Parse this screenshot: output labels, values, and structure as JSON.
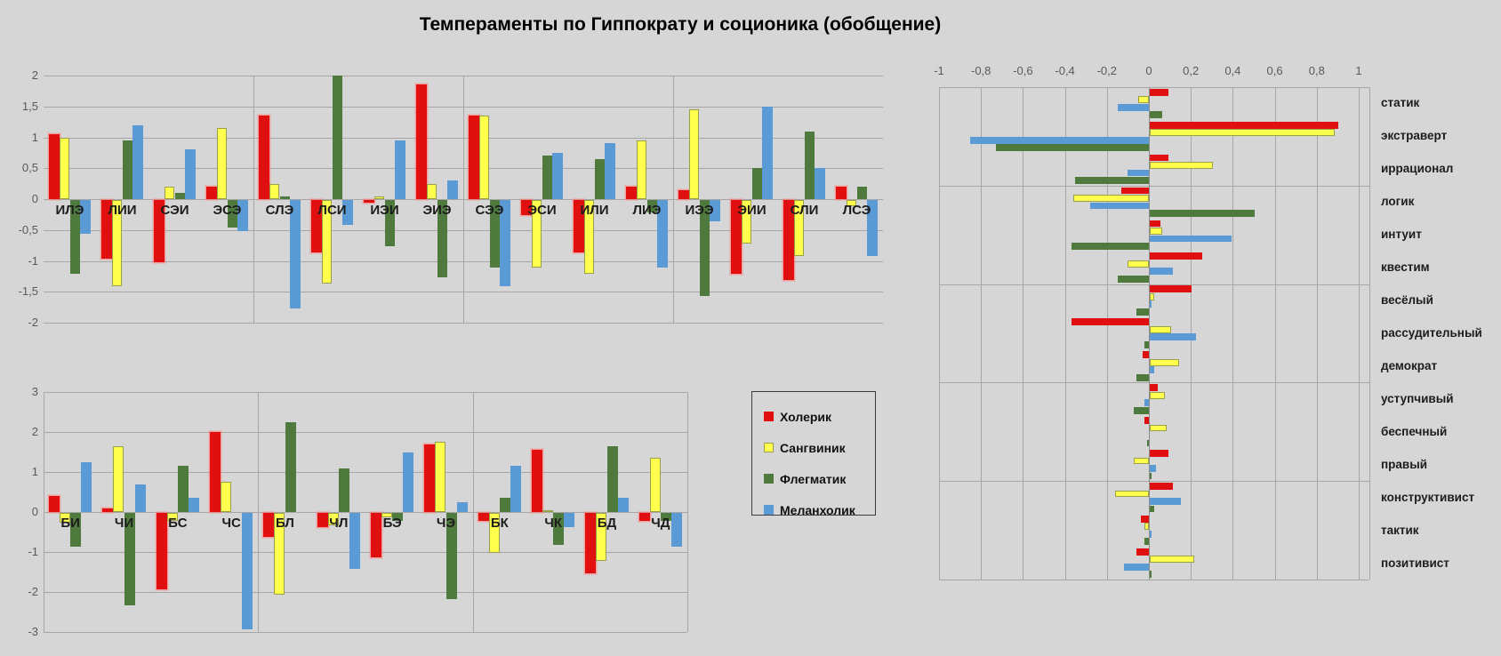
{
  "title": "Темпераменты по Гиппократу и соционика (обобщение)",
  "legend": {
    "items": [
      {
        "label": "Холерик",
        "color": "#e01010",
        "border": ""
      },
      {
        "label": "Сангвиник",
        "color": "#ffff4d",
        "border": "#9aa048"
      },
      {
        "label": "Флегматик",
        "color": "#4f7a3d",
        "border": ""
      },
      {
        "label": "Меланхолик",
        "color": "#5b9bd5",
        "border": ""
      }
    ]
  },
  "chart_data": [
    {
      "type": "bar",
      "orientation": "vertical",
      "title": "",
      "categories": [
        "ИЛЭ",
        "ЛИИ",
        "СЭИ",
        "ЭСЭ",
        "СЛЭ",
        "ЛСИ",
        "ИЭИ",
        "ЭИЭ",
        "СЭЭ",
        "ЭСИ",
        "ИЛИ",
        "ЛИЭ",
        "ИЭЭ",
        "ЭИИ",
        "СЛИ",
        "ЛСЭ"
      ],
      "series": [
        {
          "name": "Холерик",
          "color": "#e01010",
          "values": [
            1.05,
            -0.95,
            -1.0,
            0.2,
            1.35,
            -0.85,
            -0.05,
            1.85,
            1.35,
            -0.25,
            -0.85,
            0.2,
            0.15,
            -1.2,
            -1.3,
            0.2
          ]
        },
        {
          "name": "Сангвиник",
          "color": "#ffff4d",
          "border": "#9aa048",
          "values": [
            1.0,
            -1.4,
            0.2,
            1.15,
            0.25,
            -1.35,
            0.05,
            0.25,
            1.35,
            -1.1,
            -1.2,
            0.95,
            1.45,
            -0.7,
            -0.9,
            -0.1
          ]
        },
        {
          "name": "Флегматик",
          "color": "#4f7a3d",
          "values": [
            -1.2,
            0.95,
            0.1,
            -0.45,
            0.05,
            2.0,
            -0.75,
            -1.25,
            -1.1,
            0.7,
            0.65,
            -0.2,
            -1.55,
            0.5,
            1.1,
            0.2
          ]
        },
        {
          "name": "Меланхолик",
          "color": "#5b9bd5",
          "values": [
            -0.55,
            1.2,
            0.8,
            -0.5,
            -1.75,
            -0.4,
            0.95,
            0.3,
            -1.4,
            0.75,
            0.9,
            -1.1,
            -0.35,
            1.5,
            0.5,
            -0.9
          ]
        }
      ],
      "ylim": [
        -2,
        2
      ],
      "ytick_step": 0.5,
      "yticks": [
        "2",
        "1,5",
        "1",
        "0,5",
        "0",
        "-0,5",
        "-1",
        "-1,5",
        "-2"
      ],
      "grid": true,
      "group_separator_every": 4
    },
    {
      "type": "bar",
      "orientation": "vertical",
      "title": "",
      "categories": [
        "БИ",
        "ЧИ",
        "БС",
        "ЧС",
        "БЛ",
        "ЧЛ",
        "БЭ",
        "ЧЭ",
        "БК",
        "ЧК",
        "БД",
        "ЧД"
      ],
      "series": [
        {
          "name": "Холерик",
          "color": "#e01010",
          "values": [
            0.4,
            0.1,
            -1.9,
            2.0,
            -0.6,
            -0.35,
            -1.1,
            1.7,
            -0.2,
            1.55,
            -1.5,
            -0.2
          ]
        },
        {
          "name": "Сангвиник",
          "color": "#ffff4d",
          "border": "#9aa048",
          "values": [
            -0.25,
            1.65,
            -0.2,
            0.75,
            -2.05,
            -0.3,
            -0.1,
            1.75,
            -1.0,
            0.05,
            -1.2,
            1.35
          ]
        },
        {
          "name": "Флегматик",
          "color": "#4f7a3d",
          "values": [
            -0.85,
            -2.3,
            1.15,
            0.0,
            2.25,
            1.1,
            -0.2,
            -2.15,
            0.35,
            -0.8,
            1.65,
            -0.2
          ]
        },
        {
          "name": "Меланхолик",
          "color": "#5b9bd5",
          "values": [
            1.25,
            0.7,
            0.35,
            -2.9,
            0.0,
            -1.4,
            1.5,
            0.25,
            1.15,
            -0.35,
            0.35,
            -0.85
          ]
        }
      ],
      "ylim": [
        -3,
        3
      ],
      "ytick_step": 1,
      "yticks": [
        "3",
        "2",
        "1",
        "0",
        "-1",
        "-2",
        "-3"
      ],
      "grid": true,
      "group_separator_every": 4
    },
    {
      "type": "bar",
      "orientation": "horizontal",
      "title": "",
      "categories": [
        "статик",
        "экстраверт",
        "иррационал",
        "логик",
        "интуит",
        "квестим",
        "весёлый",
        "рассудительный",
        "демократ",
        "уступчивый",
        "беспечный",
        "правый",
        "конструктивист",
        "тактик",
        "позитивист"
      ],
      "series": [
        {
          "name": "Холерик",
          "color": "#e01010",
          "values": [
            0.09,
            0.9,
            0.09,
            -0.13,
            0.05,
            0.25,
            0.2,
            -0.37,
            -0.03,
            0.04,
            -0.02,
            0.09,
            0.11,
            -0.04,
            -0.06
          ]
        },
        {
          "name": "Сангвиник",
          "color": "#ffff4d",
          "border": "#9aa048",
          "values": [
            -0.05,
            0.88,
            0.3,
            -0.36,
            0.06,
            -0.1,
            0.02,
            0.1,
            0.14,
            0.07,
            0.08,
            -0.07,
            -0.16,
            -0.02,
            0.21
          ]
        },
        {
          "name": "Меланхолик",
          "color": "#5b9bd5",
          "values": [
            -0.15,
            -0.85,
            -0.1,
            -0.28,
            0.39,
            0.11,
            0.01,
            0.22,
            0.02,
            -0.02,
            0.0,
            0.03,
            0.15,
            0.01,
            -0.12
          ]
        },
        {
          "name": "Флегматик",
          "color": "#4f7a3d",
          "values": [
            0.06,
            -0.73,
            -0.35,
            0.5,
            -0.37,
            -0.15,
            -0.06,
            -0.02,
            -0.06,
            -0.07,
            -0.01,
            0.01,
            0.02,
            -0.02,
            0.01
          ]
        }
      ],
      "xlim": [
        -1,
        1
      ],
      "xtick_step": 0.2,
      "xticks": [
        "-1",
        "-0,8",
        "-0,6",
        "-0,4",
        "-0,2",
        "0",
        "0,2",
        "0,4",
        "0,6",
        "0,8",
        "1"
      ],
      "grid": true,
      "group_separator_every": 3,
      "labels_position": "right"
    }
  ]
}
